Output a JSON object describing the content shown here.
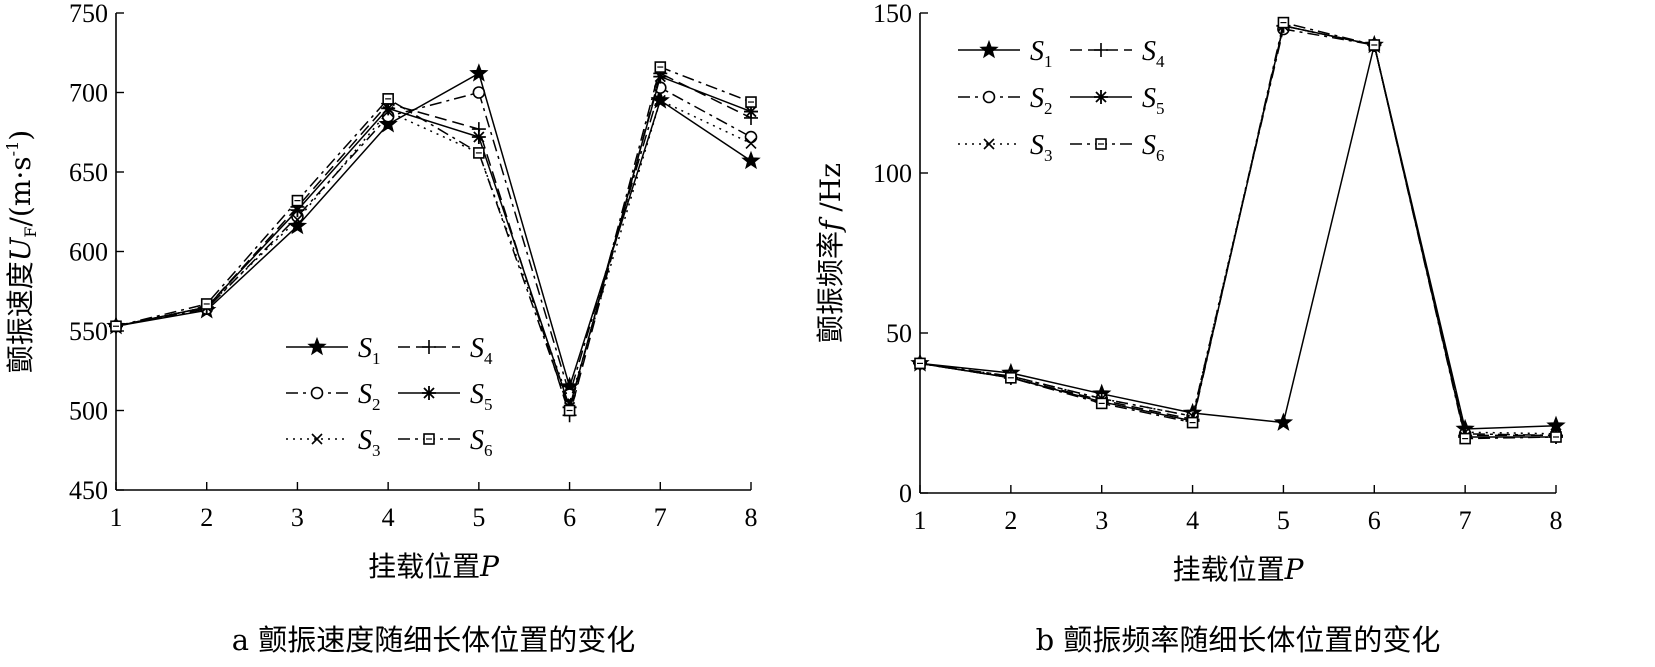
{
  "chart_data": [
    {
      "type": "line",
      "caption": "a 颤振速度随细长体位置的变化",
      "xlabel": "挂载位置",
      "xlabel_symbol": "P",
      "ylabel": "颤振速度",
      "ylabel_symbol": "U",
      "ylabel_subscript": "F",
      "ylabel_unit": "/(m·s",
      "ylabel_unit_exp": "-1",
      "ylabel_unit_close": ")",
      "ylim": [
        450,
        750
      ],
      "yticks": [
        "450",
        "500",
        "550",
        "600",
        "650",
        "700",
        "750"
      ],
      "xlim": [
        1,
        8
      ],
      "xticks": [
        "1",
        "2",
        "3",
        "4",
        "5",
        "6",
        "7",
        "8"
      ],
      "legend_position": "lower-middle",
      "x": [
        1,
        2,
        3,
        4,
        5,
        6,
        7,
        8
      ],
      "series": [
        {
          "name": "S",
          "sub": "1",
          "marker": "star",
          "dash": "none",
          "values": [
            553,
            563,
            616,
            680,
            712,
            515,
            695,
            657
          ]
        },
        {
          "name": "S",
          "sub": "2",
          "marker": "circle",
          "dash": "12,5,3,5",
          "values": [
            553,
            564,
            622,
            685,
            700,
            510,
            703,
            672
          ]
        },
        {
          "name": "S",
          "sub": "3",
          "marker": "x",
          "dash": "2,5",
          "values": [
            553,
            565,
            620,
            688,
            662,
            505,
            695,
            668
          ]
        },
        {
          "name": "S",
          "sub": "4",
          "marker": "plus",
          "dash": "12,6",
          "values": [
            553,
            565,
            628,
            693,
            677,
            497,
            712,
            684
          ]
        },
        {
          "name": "S",
          "sub": "5",
          "marker": "asterisk",
          "dash": "none",
          "values": [
            553,
            565,
            626,
            690,
            672,
            502,
            710,
            688
          ]
        },
        {
          "name": "S",
          "sub": "6",
          "marker": "square",
          "dash": "12,5,3,5",
          "values": [
            553,
            567,
            632,
            696,
            662,
            500,
            716,
            694
          ]
        }
      ]
    },
    {
      "type": "line",
      "caption": "b 颤振频率随细长体位置的变化",
      "xlabel": "挂载位置",
      "xlabel_symbol": "P",
      "ylabel": "颤振频率",
      "ylabel_symbol": "f",
      "ylabel_unit": " /Hz",
      "ylim": [
        0,
        150
      ],
      "yticks": [
        "0",
        "50",
        "100",
        "150"
      ],
      "xlim": [
        1,
        8
      ],
      "xticks": [
        "1",
        "2",
        "3",
        "4",
        "5",
        "6",
        "7",
        "8"
      ],
      "legend_position": "top-left",
      "x": [
        1,
        2,
        3,
        4,
        5,
        6,
        7,
        8
      ],
      "series": [
        {
          "name": "S",
          "sub": "1",
          "marker": "star",
          "dash": "none",
          "values": [
            40.5,
            37.5,
            31,
            25,
            22,
            140,
            20,
            21
          ]
        },
        {
          "name": "S",
          "sub": "2",
          "marker": "circle",
          "dash": "12,5,3,5",
          "values": [
            40.5,
            36.5,
            29.5,
            24,
            145,
            140,
            18.5,
            18
          ]
        },
        {
          "name": "S",
          "sub": "3",
          "marker": "x",
          "dash": "2,5",
          "values": [
            40.5,
            36.5,
            29.5,
            24,
            146,
            140,
            19,
            18.5
          ]
        },
        {
          "name": "S",
          "sub": "4",
          "marker": "plus",
          "dash": "12,6",
          "values": [
            40.5,
            36,
            29,
            23,
            146,
            140,
            18,
            18
          ]
        },
        {
          "name": "S",
          "sub": "5",
          "marker": "asterisk",
          "dash": "none",
          "values": [
            40.5,
            36,
            28.5,
            22.5,
            146,
            140,
            17.5,
            17.5
          ]
        },
        {
          "name": "S",
          "sub": "6",
          "marker": "square",
          "dash": "12,5,3,5",
          "values": [
            40.5,
            36,
            28,
            22,
            147,
            140,
            17,
            17.5
          ]
        }
      ]
    }
  ]
}
